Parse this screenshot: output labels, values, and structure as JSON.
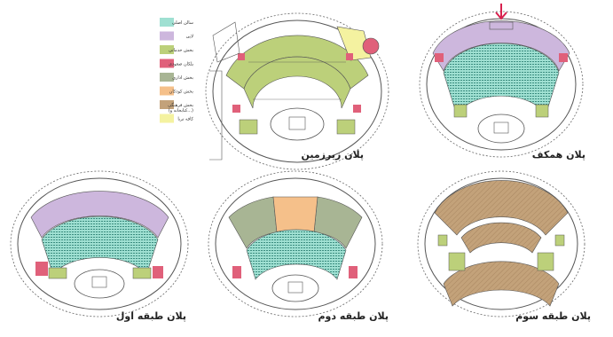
{
  "colors": {
    "main_hall": "#9fe0d2",
    "lobby": "#cdb7dd",
    "services": "#bcd07a",
    "stairs": "#e0607a",
    "admin": "#a8b594",
    "children": "#f5c08a",
    "cultural": "#c3a27a",
    "cafe": "#f4f2a0",
    "line": "#555555",
    "arrow": "#d8214e"
  },
  "legend": [
    {
      "label": "سالن اصلی",
      "color": "#9fe0d2"
    },
    {
      "label": "لابی",
      "color": "#cdb7dd"
    },
    {
      "label": "بخش خدماتی",
      "color": "#bcd07a"
    },
    {
      "label": "پلکان صعودی",
      "color": "#e0607a"
    },
    {
      "label": "بخش اداری",
      "color": "#a8b594"
    },
    {
      "label": "بخش کودکان",
      "color": "#f5c08a"
    },
    {
      "label": "بخش فرهنگی",
      "sublabel": "(کتابخانه و...)",
      "color": "#c3a27a"
    },
    {
      "label": "کافه تریا",
      "color": "#f4f2a0"
    }
  ],
  "plans": {
    "basement": "پلان زیرزمین",
    "roof": "پلان همکف",
    "first": "پلان طبقه اول",
    "second": "پلان طبقه دوم",
    "third": "پلان طبقه سوم"
  }
}
